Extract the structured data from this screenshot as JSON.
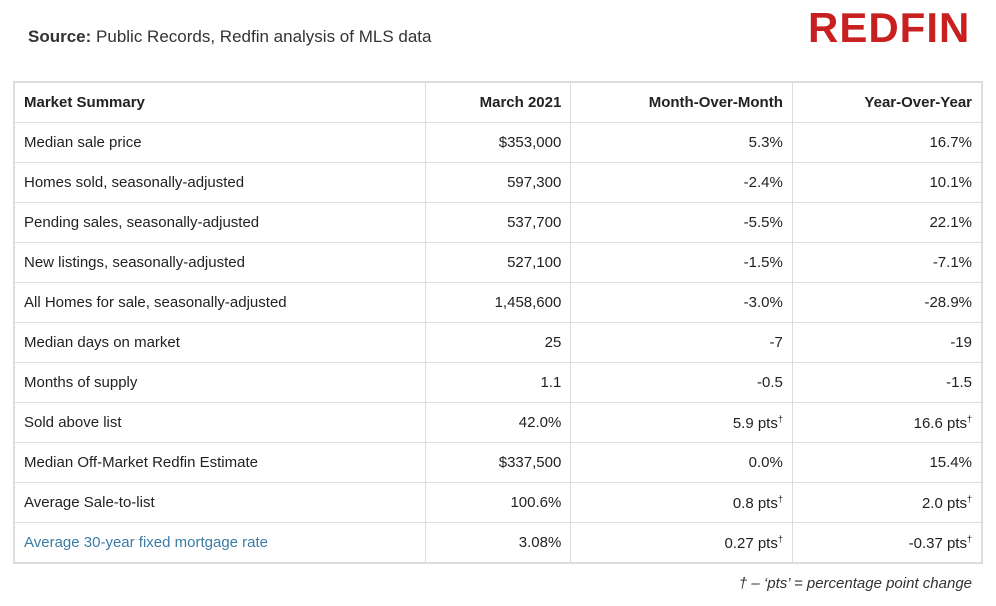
{
  "header": {
    "source_label": "Source:",
    "source_text": "Public Records, Redfin analysis of MLS data",
    "logo": "REDFIN"
  },
  "table": {
    "columns": [
      "Market Summary",
      "March 2021",
      "Month-Over-Month",
      "Year-Over-Year"
    ],
    "rows": [
      [
        "Median sale price",
        "$353,000",
        "5.3%",
        "16.7%"
      ],
      [
        "Homes sold, seasonally-adjusted",
        "597,300",
        "-2.4%",
        "10.1%"
      ],
      [
        "Pending sales, seasonally-adjusted",
        "537,700",
        "-5.5%",
        "22.1%"
      ],
      [
        "New listings, seasonally-adjusted",
        "527,100",
        "-1.5%",
        "-7.1%"
      ],
      [
        "All Homes for sale, seasonally-adjusted",
        "1,458,600",
        "-3.0%",
        "-28.9%"
      ],
      [
        "Median days on market",
        "25",
        "-7",
        "-19"
      ],
      [
        "Months of supply",
        "1.1",
        "-0.5",
        "-1.5"
      ],
      [
        "Sold above list",
        "42.0%",
        {
          "text": "5.9 pts",
          "sup": "†"
        },
        {
          "text": "16.6 pts",
          "sup": "†"
        }
      ],
      [
        "Median Off-Market Redfin Estimate",
        "$337,500",
        "0.0%",
        "15.4%"
      ],
      [
        "Average Sale-to-list",
        "100.6%",
        {
          "text": "0.8 pts",
          "sup": "†"
        },
        {
          "text": "2.0 pts",
          "sup": "†"
        }
      ],
      [
        {
          "link": "Average 30-year fixed mortgage rate"
        },
        "3.08%",
        {
          "text": "0.27 pts",
          "sup": "†"
        },
        {
          "text": "-0.37 pts",
          "sup": "†"
        }
      ]
    ]
  },
  "footnote": "† – ‘pts’ = percentage point change"
}
